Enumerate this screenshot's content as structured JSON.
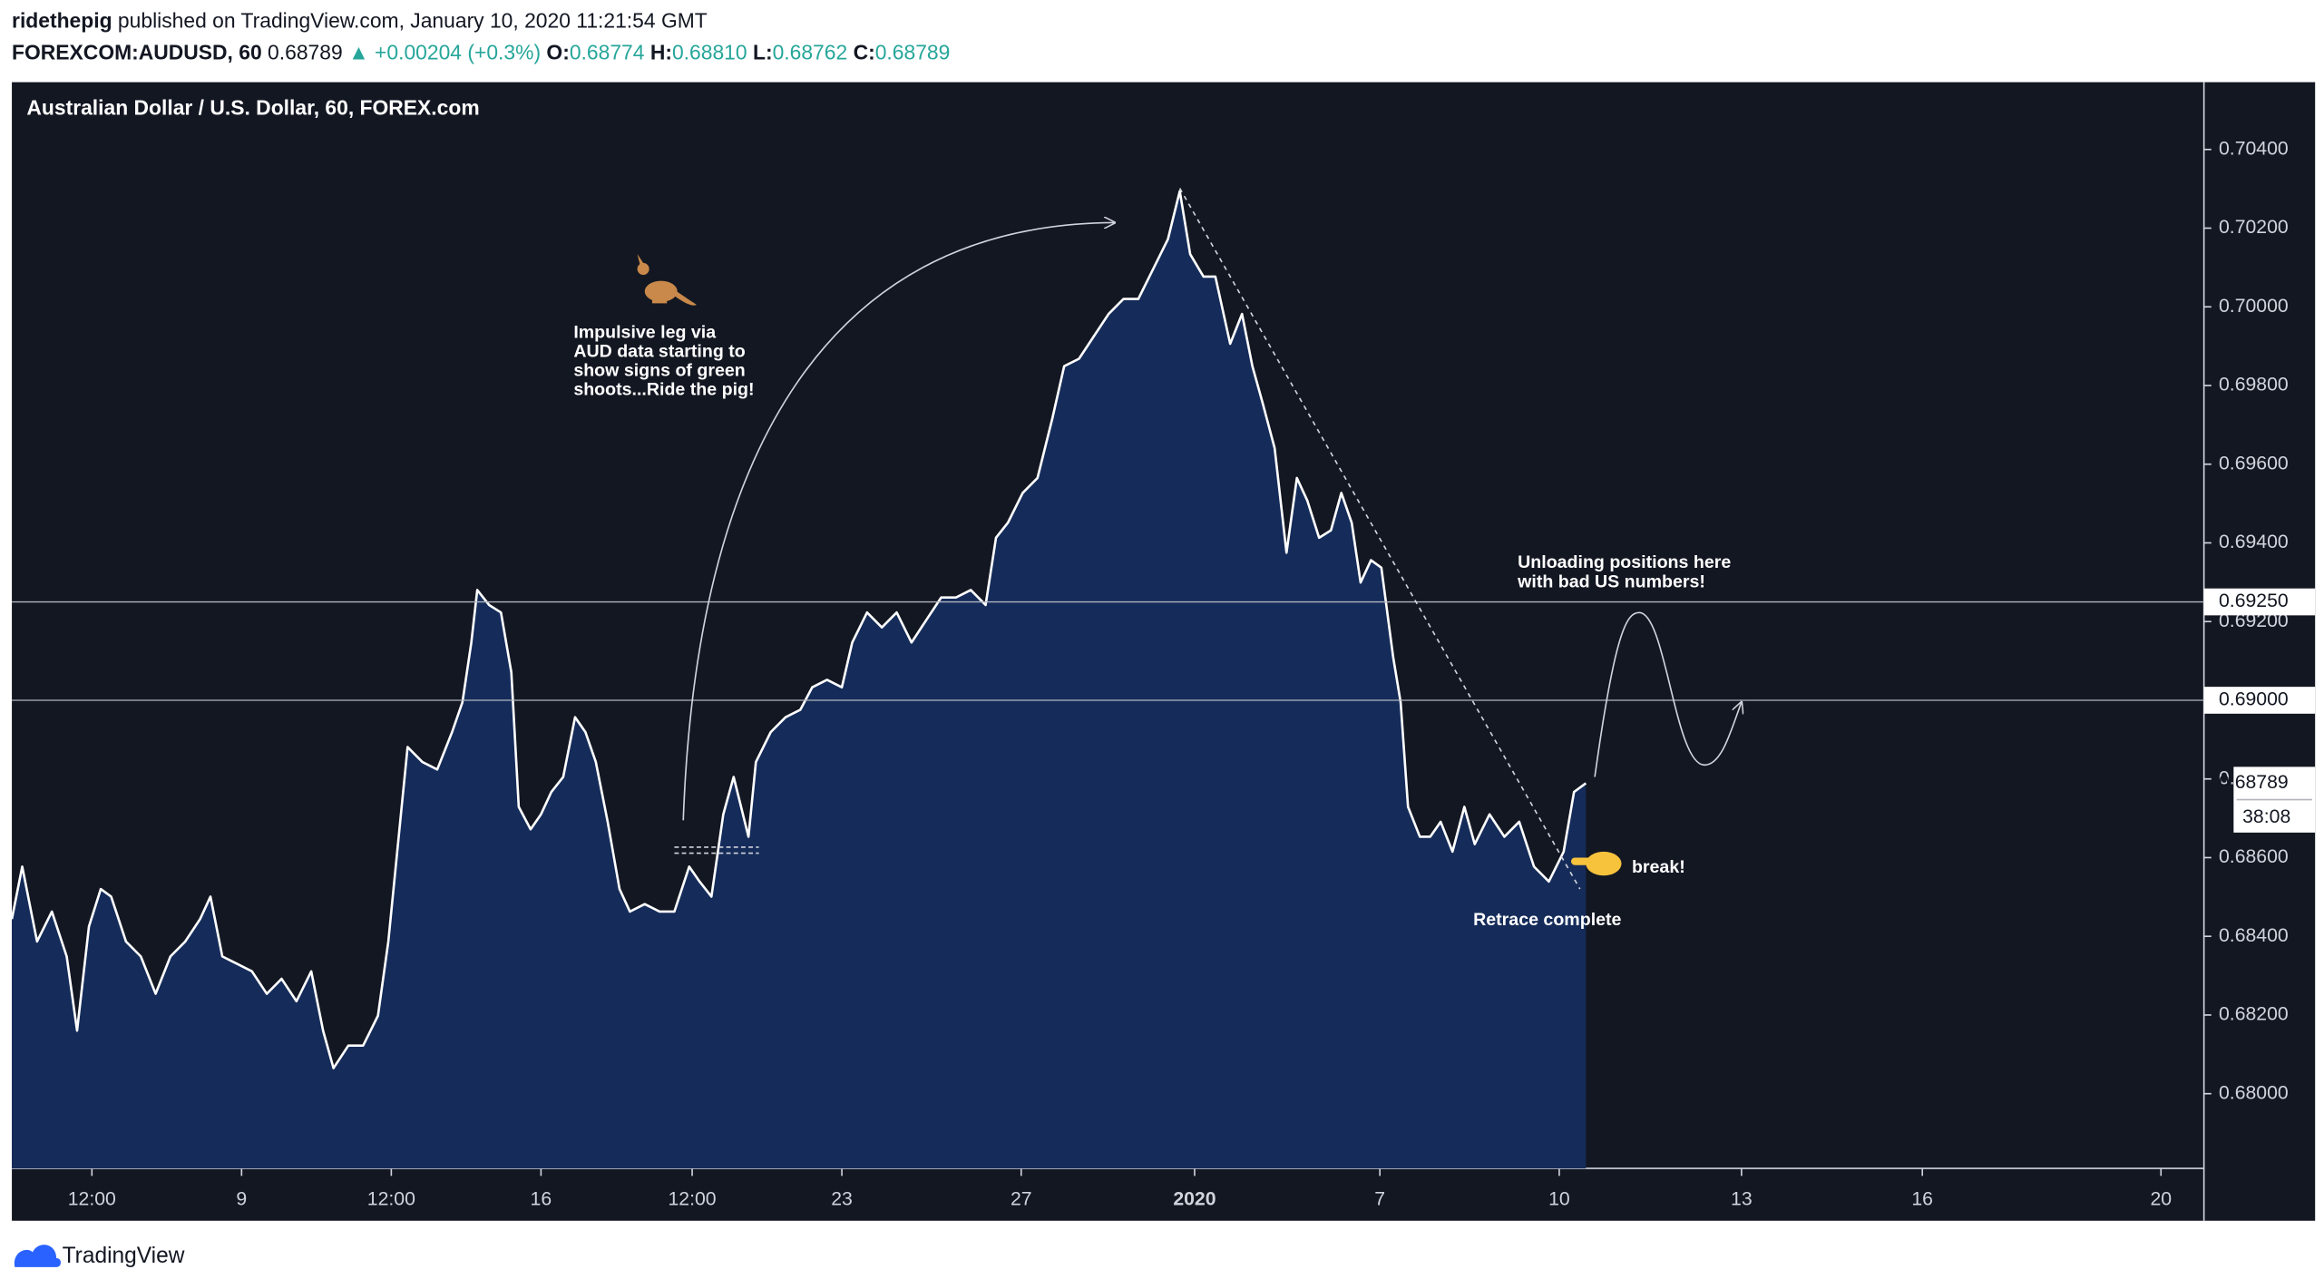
{
  "header": {
    "author": "ridethepig",
    "published": "published on TradingView.com, January 10, 2020 11:21:54 GMT",
    "symbol": "FOREXCOM:AUDUSD, 60",
    "price": "0.68789",
    "change": "▲ +0.00204 (+0.3%)",
    "open_label": "O:",
    "open": "0.68774",
    "high_label": "H:",
    "high": "0.68810",
    "low_label": "L:",
    "low": "0.68762",
    "close_label": "C:",
    "close": "0.68789"
  },
  "chart_data": {
    "type": "area",
    "title": "Australian Dollar / U.S. Dollar, 60, FOREX.com",
    "x": [
      0,
      7,
      17,
      27,
      37,
      44,
      52,
      60,
      67,
      77,
      87,
      97,
      107,
      117,
      127,
      134,
      142,
      152,
      162,
      172,
      182,
      192,
      202,
      210,
      217,
      227,
      237,
      247,
      254,
      260,
      267,
      277,
      287,
      297,
      304,
      310,
      314,
      322,
      330,
      337,
      342,
      350,
      357,
      364,
      372,
      380,
      387,
      394,
      402,
      410,
      417,
      427,
      437,
      447,
      457,
      464,
      472,
      480,
      487,
      497,
      502,
      512,
      522,
      532,
      540,
      550,
      560,
      567,
      577,
      587,
      597,
      607,
      617,
      627,
      637,
      647,
      657,
      664,
      672,
      682,
      692,
      702,
      710,
      720,
      730,
      740,
      750,
      760,
      770,
      780,
      788,
      795,
      804,
      812,
      822,
      830,
      837,
      844,
      852,
      860,
      867,
      874,
      882,
      890,
      897,
      904,
      910,
      917,
      924,
      932,
      937,
      942,
      950,
      957,
      964,
      972,
      980,
      987,
      997,
      1007,
      1017,
      1027,
      1037,
      1047,
      1054,
      1062
    ],
    "values": [
      0.68444,
      0.68577,
      0.68387,
      0.68463,
      0.68349,
      0.6816,
      0.68425,
      0.6852,
      0.68501,
      0.68387,
      0.68349,
      0.68254,
      0.68349,
      0.68387,
      0.68444,
      0.68501,
      0.68349,
      0.6833,
      0.68311,
      0.68254,
      0.68292,
      0.68235,
      0.68311,
      0.6816,
      0.68065,
      0.68122,
      0.68122,
      0.68198,
      0.68387,
      0.68615,
      0.68881,
      0.68843,
      0.68824,
      0.68919,
      0.68995,
      0.69147,
      0.6928,
      0.69242,
      0.69223,
      0.69071,
      0.68729,
      0.68672,
      0.6871,
      0.68767,
      0.68805,
      0.68957,
      0.68919,
      0.68843,
      0.68691,
      0.6852,
      0.68463,
      0.68482,
      0.68463,
      0.68463,
      0.68577,
      0.68539,
      0.68501,
      0.6871,
      0.68805,
      0.68653,
      0.68843,
      0.68919,
      0.68957,
      0.68976,
      0.69033,
      0.69052,
      0.69033,
      0.69147,
      0.69223,
      0.69185,
      0.69223,
      0.69147,
      0.69204,
      0.69261,
      0.69261,
      0.6928,
      0.69242,
      0.69413,
      0.69451,
      0.69527,
      0.69565,
      0.69716,
      0.69849,
      0.69868,
      0.69925,
      0.69982,
      0.7002,
      0.7002,
      0.70096,
      0.70172,
      0.70294,
      0.70134,
      0.70077,
      0.70077,
      0.69906,
      0.69982,
      0.69849,
      0.69754,
      0.69641,
      0.69375,
      0.69565,
      0.69508,
      0.69413,
      0.69432,
      0.69527,
      0.69451,
      0.69299,
      0.69356,
      0.69337,
      0.69109,
      0.68995,
      0.68729,
      0.68653,
      0.68653,
      0.68691,
      0.68615,
      0.68729,
      0.68634,
      0.6871,
      0.68653,
      0.68691,
      0.68577,
      0.68539,
      0.68615,
      0.68767,
      0.68789
    ],
    "line_color": "#ffffff",
    "fill_color": "#152c5a",
    "xlim": [
      0,
      1479
    ],
    "xticks": [
      {
        "value": 54,
        "label": "12:00"
      },
      {
        "value": 155,
        "label": "9"
      },
      {
        "value": 256,
        "label": "12:00"
      },
      {
        "value": 357,
        "label": "16"
      },
      {
        "value": 459,
        "label": "12:00"
      },
      {
        "value": 560,
        "label": "23"
      },
      {
        "value": 681,
        "label": "27"
      },
      {
        "value": 798,
        "label": "2020"
      },
      {
        "value": 923,
        "label": "7"
      },
      {
        "value": 1044,
        "label": "10"
      },
      {
        "value": 1167,
        "label": "13"
      },
      {
        "value": 1289,
        "label": "16"
      },
      {
        "value": 1450,
        "label": "20"
      }
    ],
    "ylim": [
      0.6781,
      0.70571
    ],
    "yticks": [
      {
        "value": 0.68,
        "label": "0.68000"
      },
      {
        "value": 0.682,
        "label": "0.68200"
      },
      {
        "value": 0.684,
        "label": "0.68400"
      },
      {
        "value": 0.686,
        "label": "0.68600"
      },
      {
        "value": 0.688,
        "label": "0.68800"
      },
      {
        "value": 0.69,
        "label": "0.69000"
      },
      {
        "value": 0.692,
        "label": "0.69200"
      },
      {
        "value": 0.694,
        "label": "0.69400"
      },
      {
        "value": 0.696,
        "label": "0.69600"
      },
      {
        "value": 0.698,
        "label": "0.69800"
      },
      {
        "value": 0.7,
        "label": "0.70000"
      },
      {
        "value": 0.702,
        "label": "0.70200"
      },
      {
        "value": 0.704,
        "label": "0.70400"
      }
    ],
    "grid": false,
    "hlines": [
      {
        "value": 0.6925,
        "label": "0.69250"
      },
      {
        "value": 0.69,
        "label": "0.69000"
      }
    ],
    "last_price": {
      "value": 0.68789,
      "label": "0.68789"
    },
    "countdown": "38:08",
    "annotations": {
      "impulsive": [
        "Impulsive leg via",
        "AUD data starting to",
        "show signs of green",
        "shoots...Ride the pig!"
      ],
      "unloading": [
        "Unloading positions here",
        "with bad US numbers!"
      ],
      "break": "break!",
      "retrace": "Retrace complete"
    }
  },
  "footer": {
    "brand": "TradingView"
  }
}
